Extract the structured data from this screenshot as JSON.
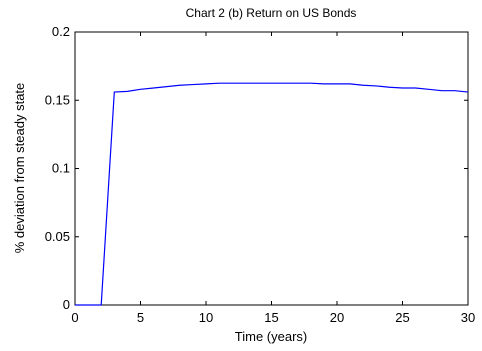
{
  "chart_data": {
    "type": "line",
    "title": "Chart 2 (b) Return on US Bonds",
    "xlabel": "Time (years)",
    "ylabel": "% deviation from steady state",
    "xlim": [
      0,
      30
    ],
    "ylim": [
      0,
      0.2
    ],
    "x_ticks": [
      0,
      5,
      10,
      15,
      20,
      25,
      30
    ],
    "x_tick_labels": [
      "0",
      "5",
      "10",
      "15",
      "20",
      "25",
      "30"
    ],
    "y_ticks": [
      0,
      0.05,
      0.1,
      0.15,
      0.2
    ],
    "y_tick_labels": [
      "0",
      "0.05",
      "0.1",
      "0.15",
      "0.2"
    ],
    "grid": false,
    "series": [
      {
        "color": "#0000ff",
        "x": [
          0,
          1,
          2,
          3,
          4,
          5,
          6,
          7,
          8,
          9,
          10,
          11,
          12,
          13,
          14,
          15,
          16,
          17,
          18,
          19,
          20,
          21,
          22,
          23,
          24,
          25,
          26,
          27,
          28,
          29,
          30
        ],
        "y": [
          0,
          0,
          0,
          0.156,
          0.1565,
          0.158,
          0.159,
          0.16,
          0.161,
          0.1615,
          0.162,
          0.1625,
          0.1625,
          0.1625,
          0.1625,
          0.1625,
          0.1625,
          0.1625,
          0.1625,
          0.162,
          0.162,
          0.162,
          0.161,
          0.1605,
          0.1595,
          0.159,
          0.159,
          0.158,
          0.157,
          0.157,
          0.156
        ]
      }
    ]
  }
}
